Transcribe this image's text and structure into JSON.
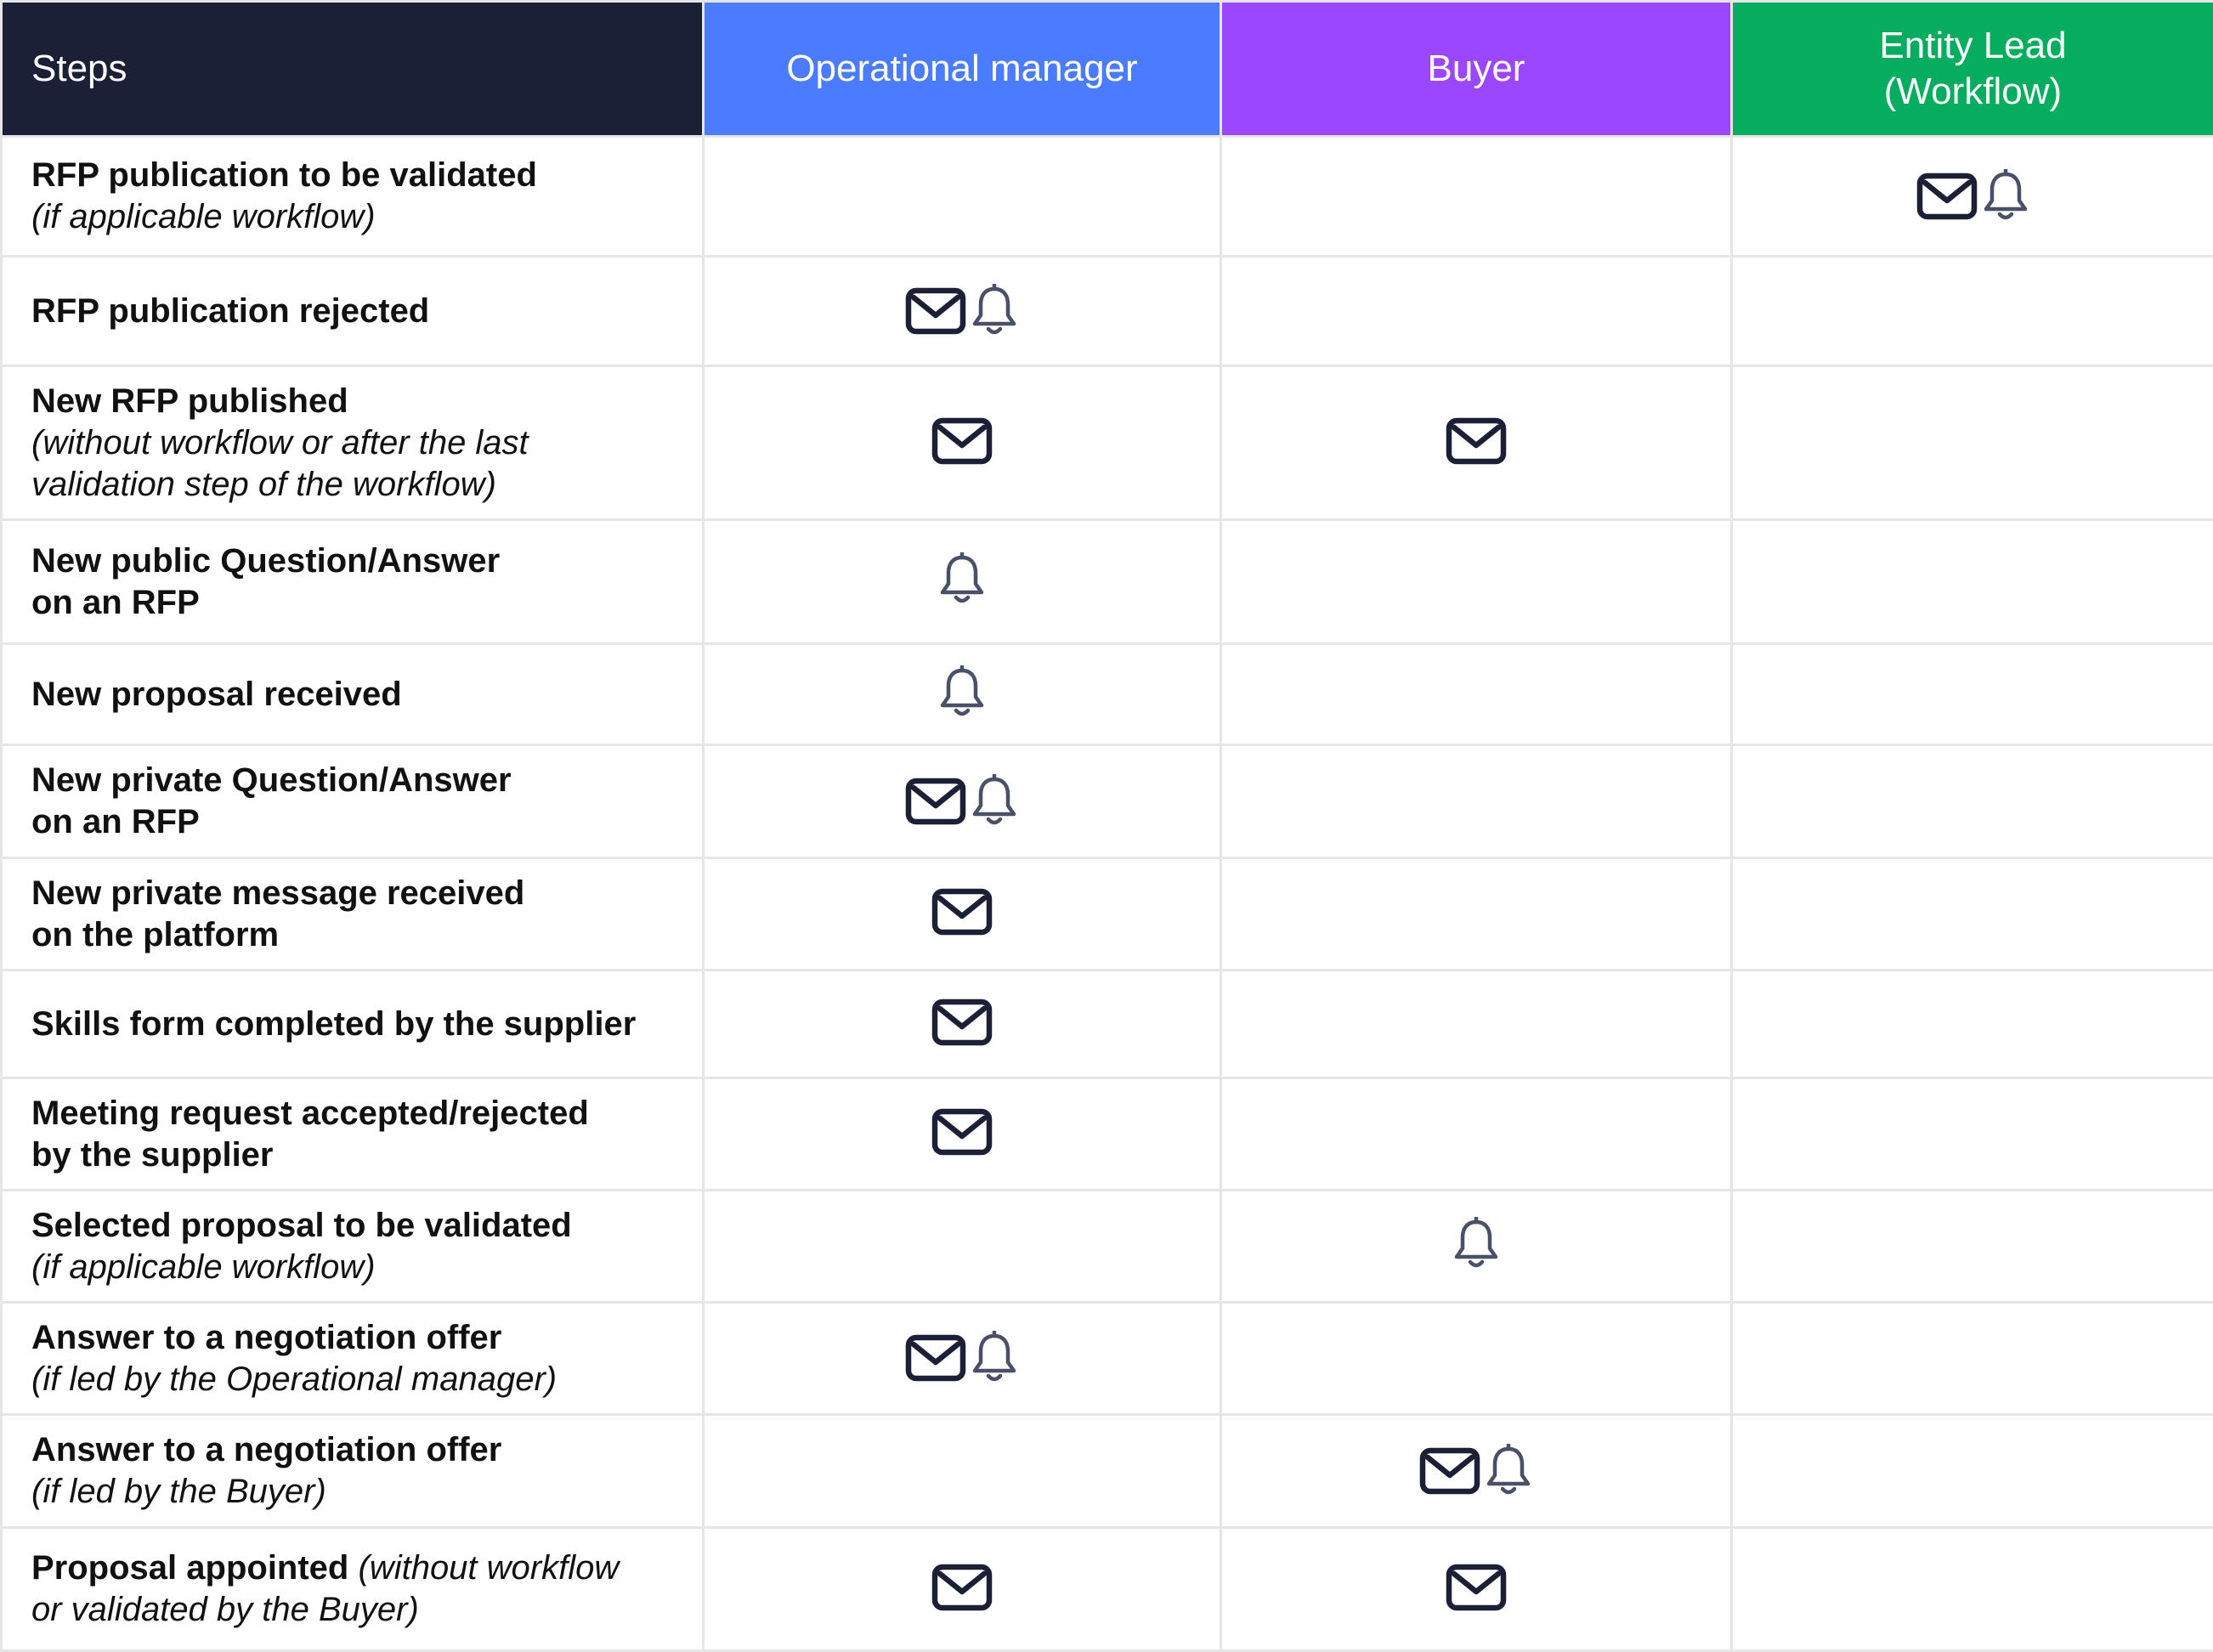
{
  "headers": {
    "steps": "Steps",
    "operational_manager": "Operational manager",
    "buyer": "Buyer",
    "entity_lead_line1": "Entity Lead",
    "entity_lead_line2": "(Workflow)"
  },
  "rows": [
    {
      "title": "RFP publication to be validated",
      "note": "(if applicable workflow)",
      "om": [],
      "buyer": [],
      "lead": [
        "mail-icon",
        "bell-icon"
      ]
    },
    {
      "title": "RFP publication rejected",
      "om": [
        "mail-icon",
        "bell-icon"
      ],
      "buyer": [],
      "lead": []
    },
    {
      "title": "New RFP published",
      "note": "(without workflow or after the last",
      "note2": "validation step of the workflow)",
      "om": [
        "mail-icon"
      ],
      "buyer": [
        "mail-icon"
      ],
      "lead": []
    },
    {
      "title": "New public Question/Answer",
      "title2": "on an RFP",
      "om": [
        "bell-icon"
      ],
      "buyer": [],
      "lead": []
    },
    {
      "title": "New proposal received",
      "om": [
        "bell-icon"
      ],
      "buyer": [],
      "lead": []
    },
    {
      "title": "New private Question/Answer",
      "title2": "on an RFP",
      "om": [
        "mail-icon",
        "bell-icon"
      ],
      "buyer": [],
      "lead": []
    },
    {
      "title": "New private message received",
      "title2": "on the platform",
      "om": [
        "mail-icon"
      ],
      "buyer": [],
      "lead": []
    },
    {
      "title": "Skills form completed by the supplier",
      "om": [
        "mail-icon"
      ],
      "buyer": [],
      "lead": []
    },
    {
      "title": "Meeting request accepted/rejected",
      "title2": "by the supplier",
      "om": [
        "mail-icon"
      ],
      "buyer": [],
      "lead": []
    },
    {
      "title": "Selected proposal to be validated",
      "note": "(if applicable workflow)",
      "om": [],
      "buyer": [
        "bell-icon"
      ],
      "lead": []
    },
    {
      "title": "Answer to a negotiation offer",
      "note": "(if led by the Operational manager)",
      "om": [
        "mail-icon",
        "bell-icon"
      ],
      "buyer": [],
      "lead": []
    },
    {
      "title": "Answer to a negotiation offer",
      "note": "(if led by the Buyer)",
      "om": [],
      "buyer": [
        "mail-icon",
        "bell-icon"
      ],
      "lead": []
    },
    {
      "title": "Proposal appointed",
      "note_inline": "(without workflow",
      "note": "or validated by the Buyer)",
      "om": [
        "mail-icon"
      ],
      "buyer": [
        "mail-icon"
      ],
      "lead": []
    }
  ]
}
